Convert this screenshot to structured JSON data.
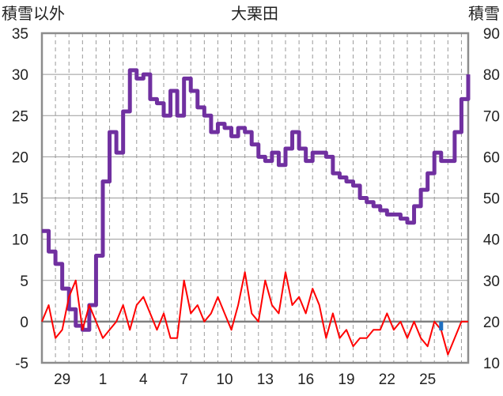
{
  "chart_data": {
    "type": "line",
    "title": "大栗田",
    "left_axis_label": "積雪以外",
    "right_axis_label": "積雪",
    "left_axis": {
      "min": -5,
      "max": 35,
      "ticks": [
        -5,
        0,
        5,
        10,
        15,
        20,
        25,
        30,
        35
      ]
    },
    "right_axis": {
      "min": 10,
      "max": 90,
      "ticks": [
        10,
        20,
        30,
        40,
        50,
        60,
        70,
        80,
        90
      ]
    },
    "x_tick_labels": [
      "29",
      "1",
      "4",
      "7",
      "10",
      "13",
      "16",
      "19",
      "22",
      "25"
    ],
    "grid": true,
    "colors": {
      "snow": "#7030A0",
      "temperature": "#FF0000",
      "precipitation": "#1F6FC0",
      "zero_line": "#7F7F7F",
      "grid": "#9A9A9A",
      "frame": "#8C8C8C"
    },
    "series": [
      {
        "key": "snow",
        "axis": "right",
        "color": "#7030A0",
        "x": [
          0,
          0.5,
          1,
          1.5,
          2,
          2.5,
          3,
          3.5,
          4,
          4.5,
          5,
          5.5,
          6,
          6.5,
          7,
          7.5,
          8,
          8.5,
          9,
          9.5,
          10,
          10.5,
          11,
          11.5,
          12,
          12.5,
          13,
          13.5,
          14,
          14.5,
          15,
          15.5,
          16,
          16.5,
          17,
          17.5,
          18,
          18.5,
          19,
          19.5,
          20,
          20.5,
          21,
          21.5,
          22,
          22.5,
          23,
          23.5,
          24,
          24.5,
          25,
          25.5,
          26,
          26.5,
          27,
          27.5,
          28,
          28.5,
          29,
          29.5,
          30,
          30.5,
          31,
          31.5
        ],
        "values": [
          42,
          37,
          34,
          28,
          23,
          19,
          18,
          24,
          36,
          54,
          66,
          61,
          71,
          81,
          79,
          80,
          74,
          73,
          70,
          76,
          70,
          79,
          76,
          72,
          70,
          66,
          68,
          67,
          65,
          67,
          66,
          63,
          60,
          59,
          61,
          58,
          62,
          66,
          62,
          59,
          61,
          61,
          60,
          56,
          55,
          54,
          53,
          50,
          49,
          48,
          47,
          46,
          46,
          45,
          44,
          48,
          52,
          56,
          61,
          59,
          59,
          66,
          74,
          80
        ],
        "note": "snow depth read against right axis, step-like line"
      },
      {
        "key": "temperature",
        "axis": "left",
        "color": "#FF0000",
        "x": [
          0,
          0.5,
          1,
          1.5,
          2,
          2.5,
          3,
          3.5,
          4,
          4.5,
          5,
          5.5,
          6,
          6.5,
          7,
          7.5,
          8,
          8.5,
          9,
          9.5,
          10,
          10.5,
          11,
          11.5,
          12,
          12.5,
          13,
          13.5,
          14,
          14.5,
          15,
          15.5,
          16,
          16.5,
          17,
          17.5,
          18,
          18.5,
          19,
          19.5,
          20,
          20.5,
          21,
          21.5,
          22,
          22.5,
          23,
          23.5,
          24,
          24.5,
          25,
          25.5,
          26,
          26.5,
          27,
          27.5,
          28,
          28.5,
          29,
          29.5,
          30,
          30.5,
          31,
          31.5
        ],
        "values": [
          0,
          2,
          -2,
          -1,
          3,
          5,
          -1,
          2,
          0,
          -2,
          -1,
          0,
          2,
          -1,
          2,
          3,
          1,
          -1,
          1,
          -2,
          -2,
          5,
          1,
          2,
          0,
          1,
          3,
          1,
          -1,
          2,
          6,
          1,
          0,
          5,
          2,
          1,
          6,
          2,
          3,
          1,
          4,
          2,
          -2,
          1,
          -2,
          -1,
          -3,
          -2,
          -2,
          -1,
          -1,
          1,
          -1,
          0,
          -2,
          0,
          -2,
          -3,
          0,
          -1,
          -4,
          -2,
          0,
          0
        ]
      },
      {
        "key": "precipitation",
        "axis": "left",
        "color": "#1F6FC0",
        "x": [
          29.5
        ],
        "values": [
          -0.5
        ]
      }
    ]
  }
}
